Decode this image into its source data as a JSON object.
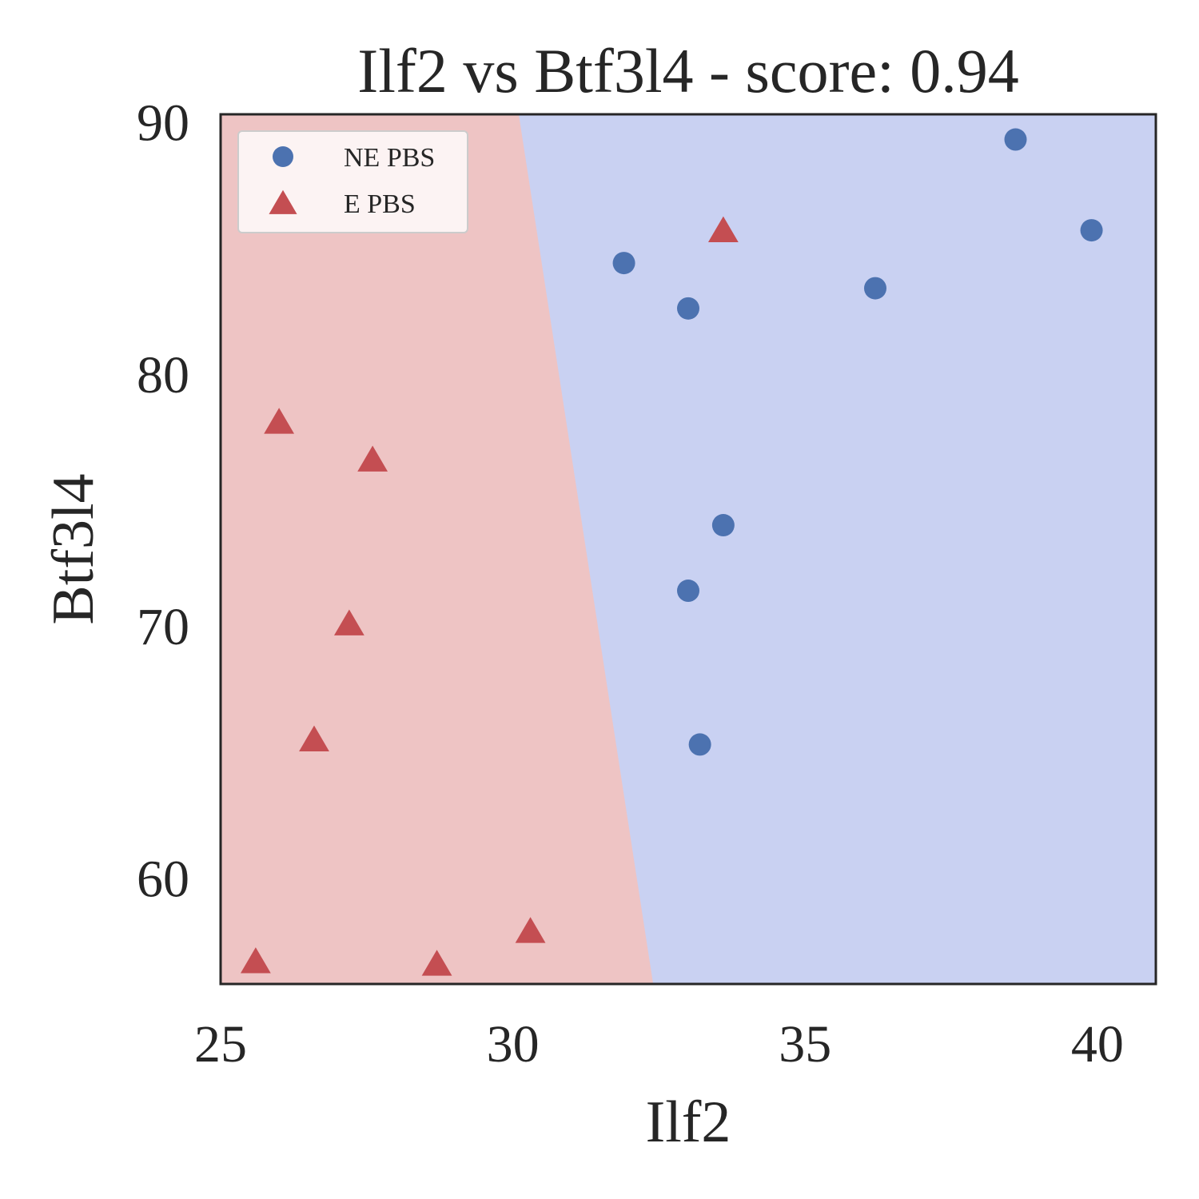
{
  "chart_data": {
    "type": "scatter",
    "title": "Ilf2 vs Btf3l4 - score: 0.94",
    "xlabel": "Ilf2",
    "ylabel": "Btf3l4",
    "xlim": [
      25,
      41
    ],
    "ylim": [
      55.8,
      90.3
    ],
    "xticks": [
      "25",
      "30",
      "35",
      "40"
    ],
    "yticks": [
      "60",
      "70",
      "80",
      "90"
    ],
    "grid": false,
    "legend_position": "top-left",
    "decision_regions": {
      "boundary": [
        [
          30.1,
          90.3
        ],
        [
          32.4,
          55.8
        ]
      ],
      "left_class": "E PBS",
      "right_class": "NE PBS",
      "left_color": "#eec4c4",
      "right_color": "#c9d1f2"
    },
    "series": [
      {
        "name": "NE PBS",
        "marker": "circle",
        "color": "#4c72b0",
        "points": [
          [
            38.6,
            89.3
          ],
          [
            39.9,
            85.7
          ],
          [
            31.9,
            84.4
          ],
          [
            33.0,
            82.6
          ],
          [
            36.2,
            83.4
          ],
          [
            33.6,
            74.0
          ],
          [
            33.0,
            71.4
          ],
          [
            33.2,
            65.3
          ]
        ]
      },
      {
        "name": "E PBS",
        "marker": "triangle",
        "color": "#c44e52",
        "points": [
          [
            33.6,
            85.7
          ],
          [
            26.0,
            78.1
          ],
          [
            27.6,
            76.6
          ],
          [
            27.2,
            70.1
          ],
          [
            26.6,
            65.5
          ],
          [
            25.6,
            56.7
          ],
          [
            28.7,
            56.6
          ],
          [
            30.3,
            57.9
          ]
        ]
      }
    ]
  }
}
